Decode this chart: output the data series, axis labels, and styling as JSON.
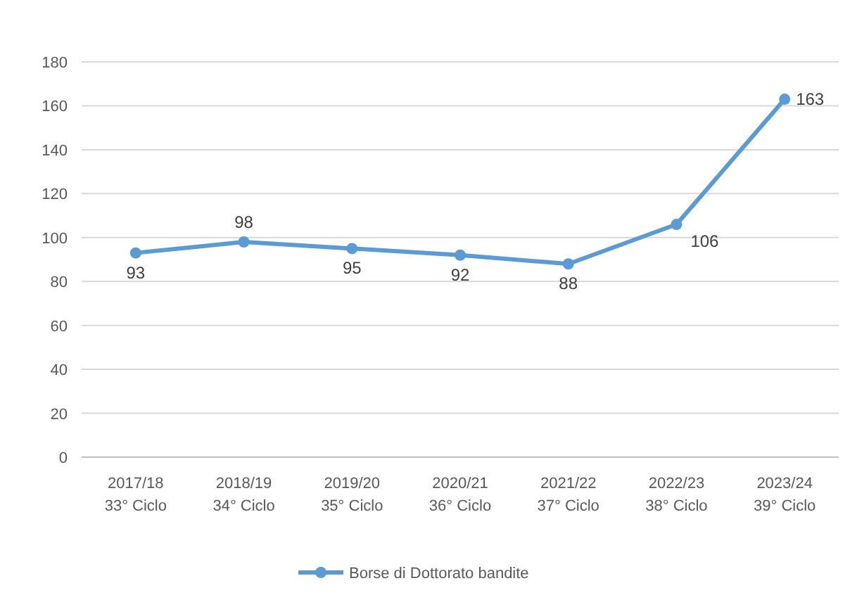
{
  "chart_data": {
    "type": "line",
    "categories": [
      "2017/18\n33° Ciclo",
      "2018/19\n34° Ciclo",
      "2019/20\n35° Ciclo",
      "2020/21\n36° Ciclo",
      "2021/22\n37° Ciclo",
      "2022/23\n38° Ciclo",
      "2023/24\n39° Ciclo"
    ],
    "series": [
      {
        "name": "Borse di Dottorato bandite",
        "color": "#5b9bd5",
        "values": [
          93,
          98,
          95,
          92,
          88,
          106,
          163
        ]
      }
    ],
    "ylim": [
      0,
      180
    ],
    "yticks": [
      0,
      20,
      40,
      60,
      80,
      100,
      120,
      140,
      160,
      180
    ],
    "grid": "y",
    "legend": "bottom",
    "marker": "circle",
    "data_labels": true
  }
}
